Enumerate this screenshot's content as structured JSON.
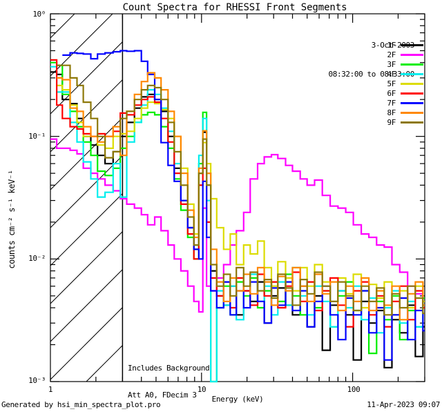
{
  "title": "Count Spectra for RHESSI Front Segments",
  "legend": {
    "date": "3-Oct-2003",
    "time_range": "08:32:00 to 08:33:00"
  },
  "annotations": {
    "line1": "Includes Background",
    "line2": "Att A0, FDecim 3"
  },
  "footer": {
    "left": "Generated by hsi_min_spectra_plot.pro",
    "right": "11-Apr-2023 09:07"
  },
  "axes": {
    "xlabel": "Energy (keV)",
    "ylabel": "counts cm⁻² s⁻¹ keV⁻¹",
    "x_ticks": [
      "1",
      "10",
      "100"
    ],
    "y_ticks": [
      "10⁰",
      "10⁻¹",
      "10⁻²",
      "10⁻³"
    ]
  },
  "chart_data": {
    "type": "line",
    "style": "step-histogram",
    "x_scale": "log",
    "y_scale": "log",
    "xlim": [
      1,
      300
    ],
    "ylim": [
      0.001,
      1
    ],
    "grid": false,
    "legend_position": "top-right",
    "hatched_region_kev": [
      1,
      3
    ],
    "axis_color": "#000000",
    "x_kev": [
      1.0,
      1.1,
      1.2,
      1.35,
      1.5,
      1.65,
      1.85,
      2.05,
      2.3,
      2.6,
      2.9,
      3.2,
      3.6,
      4.0,
      4.4,
      4.9,
      5.4,
      6.0,
      6.6,
      7.3,
      8.1,
      8.9,
      9.6,
      10.2,
      10.8,
      11.5,
      12.6,
      14.0,
      15.5,
      17.0,
      19.0,
      21.0,
      23.5,
      26.0,
      29.0,
      32.0,
      36.0,
      40.0,
      45.0,
      50.0,
      56.0,
      63.0,
      71.0,
      80.0,
      90.0,
      101.0,
      114.0,
      128.0,
      144.0,
      162.0,
      182.0,
      205.0,
      231.0,
      260.0,
      292.0
    ],
    "series": [
      {
        "name": "1F",
        "color": "#000000",
        "values": [
          0.335,
          0.32,
          0.2,
          0.185,
          0.14,
          0.1,
          0.085,
          0.07,
          0.06,
          0.075,
          0.1,
          0.13,
          0.17,
          0.21,
          0.22,
          0.2,
          0.16,
          0.1,
          0.055,
          0.03,
          0.018,
          0.012,
          0.05,
          0.108,
          0.04,
          0.008,
          0.005,
          0.0042,
          0.006,
          0.0035,
          0.0055,
          0.0045,
          0.0065,
          0.003,
          0.005,
          0.0058,
          0.0042,
          0.0035,
          0.006,
          0.0028,
          0.005,
          0.0018,
          0.0042,
          0.0055,
          0.0035,
          0.0015,
          0.0045,
          0.003,
          0.0038,
          0.0013,
          0.0032,
          0.0025,
          0.0042,
          0.0016,
          0.0028
        ]
      },
      {
        "name": "2F",
        "color": "#ff00ff",
        "values": [
          0.095,
          0.08,
          0.08,
          0.077,
          0.072,
          0.055,
          0.05,
          0.045,
          0.04,
          0.036,
          0.031,
          0.028,
          0.026,
          0.023,
          0.019,
          0.022,
          0.017,
          0.013,
          0.01,
          0.008,
          0.006,
          0.0045,
          0.0037,
          0.026,
          0.006,
          0.0055,
          0.007,
          0.009,
          0.013,
          0.017,
          0.024,
          0.045,
          0.06,
          0.068,
          0.071,
          0.066,
          0.058,
          0.052,
          0.045,
          0.04,
          0.044,
          0.033,
          0.027,
          0.026,
          0.024,
          0.019,
          0.016,
          0.015,
          0.013,
          0.0125,
          0.009,
          0.0078,
          0.006,
          0.0052,
          0.0042
        ]
      },
      {
        "name": "3F",
        "color": "#00ee00",
        "values": [
          0.4,
          0.38,
          0.22,
          0.16,
          0.12,
          0.09,
          0.07,
          0.052,
          0.048,
          0.055,
          0.08,
          0.1,
          0.13,
          0.15,
          0.157,
          0.15,
          0.12,
          0.08,
          0.045,
          0.025,
          0.015,
          0.01,
          0.06,
          0.157,
          0.05,
          0.001,
          0.004,
          0.006,
          0.0035,
          0.0065,
          0.005,
          0.007,
          0.004,
          0.0055,
          0.0065,
          0.0045,
          0.0075,
          0.005,
          0.0035,
          0.0065,
          0.004,
          0.0055,
          0.0028,
          0.005,
          0.0065,
          0.0038,
          0.0055,
          0.0017,
          0.0045,
          0.0032,
          0.005,
          0.0022,
          0.0038,
          0.0028,
          0.0048
        ]
      },
      {
        "name": "4F",
        "color": "#00eeee",
        "values": [
          0.37,
          0.23,
          0.23,
          0.13,
          0.09,
          0.062,
          0.045,
          0.032,
          0.035,
          0.06,
          0.032,
          0.09,
          0.13,
          0.18,
          0.24,
          0.22,
          0.17,
          0.11,
          0.06,
          0.03,
          0.018,
          0.013,
          0.07,
          0.14,
          0.03,
          0.001,
          0.0055,
          0.0042,
          0.006,
          0.0032,
          0.0055,
          0.0075,
          0.0045,
          0.006,
          0.0035,
          0.0065,
          0.0042,
          0.0085,
          0.005,
          0.0035,
          0.006,
          0.0045,
          0.0028,
          0.0055,
          0.004,
          0.006,
          0.0032,
          0.0048,
          0.0025,
          0.004,
          0.0055,
          0.003,
          0.0045,
          0.0028,
          0.004
        ]
      },
      {
        "name": "5F",
        "color": "#dcdc00",
        "values": [
          null,
          0.26,
          0.24,
          0.18,
          0.13,
          0.1,
          0.1,
          0.085,
          0.08,
          0.1,
          0.105,
          0.11,
          0.14,
          0.17,
          0.19,
          0.185,
          0.165,
          0.14,
          0.1,
          0.055,
          0.028,
          0.016,
          0.05,
          0.089,
          0.06,
          0.031,
          0.018,
          0.012,
          0.016,
          0.009,
          0.013,
          0.011,
          0.014,
          0.0085,
          0.006,
          0.0095,
          0.007,
          0.0055,
          0.0085,
          0.006,
          0.009,
          0.0065,
          0.0045,
          0.007,
          0.0052,
          0.0075,
          0.004,
          0.0062,
          0.0048,
          0.0065,
          0.0035,
          0.0055,
          0.004,
          0.006,
          0.0045
        ]
      },
      {
        "name": "6F",
        "color": "#ff0000",
        "values": [
          0.42,
          0.18,
          0.14,
          0.12,
          0.115,
          0.105,
          0.1,
          0.105,
          0.1,
          0.11,
          0.155,
          0.15,
          0.18,
          0.2,
          0.21,
          0.19,
          0.14,
          0.09,
          0.05,
          0.028,
          0.016,
          0.01,
          0.04,
          0.055,
          0.02,
          0.007,
          0.005,
          0.0065,
          0.004,
          0.007,
          0.0055,
          0.0042,
          0.0075,
          0.005,
          0.0065,
          0.004,
          0.006,
          0.0078,
          0.0045,
          0.0065,
          0.0038,
          0.0055,
          0.007,
          0.0042,
          0.0028,
          0.0055,
          0.0065,
          0.0035,
          0.005,
          0.0028,
          0.0045,
          0.006,
          0.0032,
          0.0055,
          0.004
        ]
      },
      {
        "name": "7F",
        "color": "#0000ff",
        "values": [
          null,
          null,
          0.46,
          0.48,
          0.475,
          0.47,
          0.43,
          0.47,
          0.48,
          0.49,
          0.5,
          0.495,
          0.5,
          0.41,
          0.32,
          0.2,
          0.089,
          0.058,
          0.043,
          0.03,
          0.018,
          0.012,
          0.01,
          0.043,
          0.015,
          0.0055,
          0.004,
          0.0065,
          0.0035,
          0.0055,
          0.004,
          0.0065,
          0.0045,
          0.003,
          0.0058,
          0.0042,
          0.0065,
          0.0038,
          0.0055,
          0.0028,
          0.0045,
          0.006,
          0.0035,
          0.0022,
          0.0048,
          0.0035,
          0.0055,
          0.0025,
          0.004,
          0.0015,
          0.0035,
          0.0048,
          0.0022,
          0.0038,
          0.0026
        ]
      },
      {
        "name": "8F",
        "color": "#ff8800",
        "values": [
          null,
          0.3,
          0.29,
          0.17,
          0.16,
          0.12,
          0.1,
          0.09,
          0.1,
          0.12,
          0.07,
          0.16,
          0.22,
          0.28,
          0.33,
          0.3,
          0.24,
          0.16,
          0.1,
          0.05,
          0.025,
          0.015,
          0.055,
          0.111,
          0.05,
          0.012,
          0.0065,
          0.0045,
          0.007,
          0.0055,
          0.0075,
          0.0052,
          0.0085,
          0.0065,
          0.0042,
          0.0072,
          0.0055,
          0.0085,
          0.006,
          0.0045,
          0.0075,
          0.0052,
          0.0065,
          0.0038,
          0.006,
          0.0045,
          0.007,
          0.0038,
          0.0055,
          0.0042,
          0.006,
          0.0032,
          0.0052,
          0.0065,
          0.0042
        ]
      },
      {
        "name": "9F",
        "color": "#8d7808",
        "values": [
          null,
          0.38,
          0.38,
          0.3,
          0.26,
          0.19,
          0.14,
          0.1,
          0.067,
          0.075,
          0.14,
          0.16,
          0.2,
          0.24,
          0.26,
          0.25,
          0.2,
          0.13,
          0.075,
          0.04,
          0.022,
          0.013,
          0.05,
          0.095,
          0.04,
          0.009,
          0.006,
          0.0075,
          0.005,
          0.0085,
          0.006,
          0.0078,
          0.0055,
          0.0068,
          0.0048,
          0.0075,
          0.0058,
          0.0042,
          0.0068,
          0.0052,
          0.0078,
          0.006,
          0.0045,
          0.0065,
          0.005,
          0.0038,
          0.006,
          0.0045,
          0.0058,
          0.0035,
          0.0052,
          0.004,
          0.006,
          0.0048,
          0.0036
        ]
      }
    ]
  }
}
